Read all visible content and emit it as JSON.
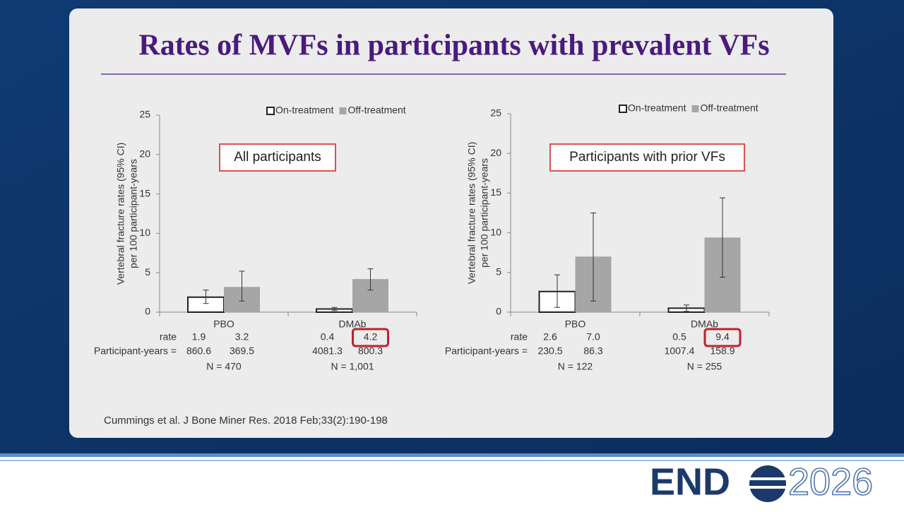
{
  "slide": {
    "title": "Rates of MVFs in participants with prevalent VFs",
    "citation": "Cummings et al. J Bone Miner Res. 2018 Feb;33(2):190-198",
    "logo": {
      "brand": "END",
      "year": "2026"
    }
  },
  "chart_data": [
    {
      "type": "bar",
      "annotation": "All participants",
      "y_label": [
        "Vertebral fracture rates (95% CI)",
        "per 100 participant-years"
      ],
      "categories": [
        "PBO",
        "DMAb"
      ],
      "series": [
        {
          "name": "On-treatment",
          "color": "#ffffff",
          "values": [
            1.9,
            0.4
          ],
          "value_labels": [
            "1.9",
            "0.4"
          ],
          "ci_low": [
            1.1,
            0.2
          ],
          "ci_high": [
            2.8,
            0.6
          ],
          "participant_years": [
            860.6,
            4081.3
          ]
        },
        {
          "name": "Off-treatment",
          "color": "#a6a6a6",
          "values": [
            3.2,
            4.2
          ],
          "value_labels": [
            "3.2",
            "4.2"
          ],
          "ci_low": [
            1.4,
            2.8
          ],
          "ci_high": [
            5.2,
            5.5
          ],
          "participant_years": [
            369.5,
            800.3
          ]
        }
      ],
      "row_labels": [
        "rate",
        "Participant-years ="
      ],
      "n_labels": [
        "N = 470",
        "N = 1,001"
      ],
      "ylim": [
        0,
        25
      ],
      "yticks": [
        0,
        5,
        10,
        15,
        20,
        25
      ],
      "legend": "top-right"
    },
    {
      "type": "bar",
      "annotation": "Participants with prior VFs",
      "y_label": [
        "Vertebral fracture rates (95% CI)",
        "per 100 participant-years"
      ],
      "categories": [
        "PBO",
        "DMAb"
      ],
      "series": [
        {
          "name": "On-treatment",
          "color": "#ffffff",
          "values": [
            2.6,
            0.5
          ],
          "value_labels": [
            "2.6",
            "0.5"
          ],
          "ci_low": [
            0.6,
            0.1
          ],
          "ci_high": [
            4.7,
            0.9
          ],
          "participant_years": [
            230.5,
            1007.4
          ]
        },
        {
          "name": "Off-treatment",
          "color": "#a6a6a6",
          "values": [
            7.0,
            9.4
          ],
          "value_labels": [
            "7.0",
            "9.4"
          ],
          "ci_low": [
            1.4,
            4.4
          ],
          "ci_high": [
            12.5,
            14.4
          ],
          "participant_years": [
            86.3,
            158.9
          ]
        }
      ],
      "row_labels": [
        "rate",
        "Participant-years ="
      ],
      "n_labels": [
        "N = 122",
        "N = 255"
      ],
      "ylim": [
        0,
        25
      ],
      "yticks": [
        0,
        5,
        10,
        15,
        20,
        25
      ],
      "legend": "top-right"
    }
  ]
}
